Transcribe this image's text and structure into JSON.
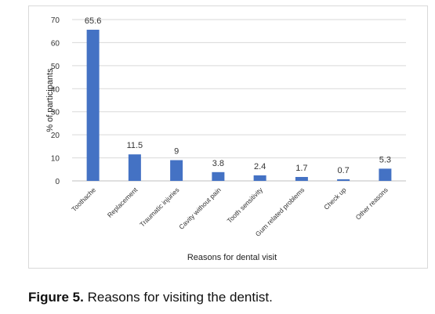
{
  "chart_data": {
    "type": "bar",
    "categories": [
      "Toothache",
      "Replacement",
      "Traumatic injuries",
      "Cavity without pain",
      "Tooth sensitivity",
      "Gum related problems",
      "Check up",
      "Other reasons"
    ],
    "values": [
      65.6,
      11.5,
      9,
      3.8,
      2.4,
      1.7,
      0.7,
      5.3
    ],
    "value_labels": [
      "65.6",
      "11.5",
      "9",
      "3.8",
      "2.4",
      "1.7",
      "0.7",
      "5.3"
    ],
    "ylabel": "% of participants",
    "xlabel": "Reasons for dental visit",
    "ylim": [
      0,
      70
    ],
    "yticks": [
      0,
      10,
      20,
      30,
      40,
      50,
      60,
      70
    ],
    "grid": true,
    "bar_color": "#4472c4"
  },
  "caption": {
    "figure_label": "Figure 5.",
    "text": " Reasons for visiting the dentist."
  }
}
